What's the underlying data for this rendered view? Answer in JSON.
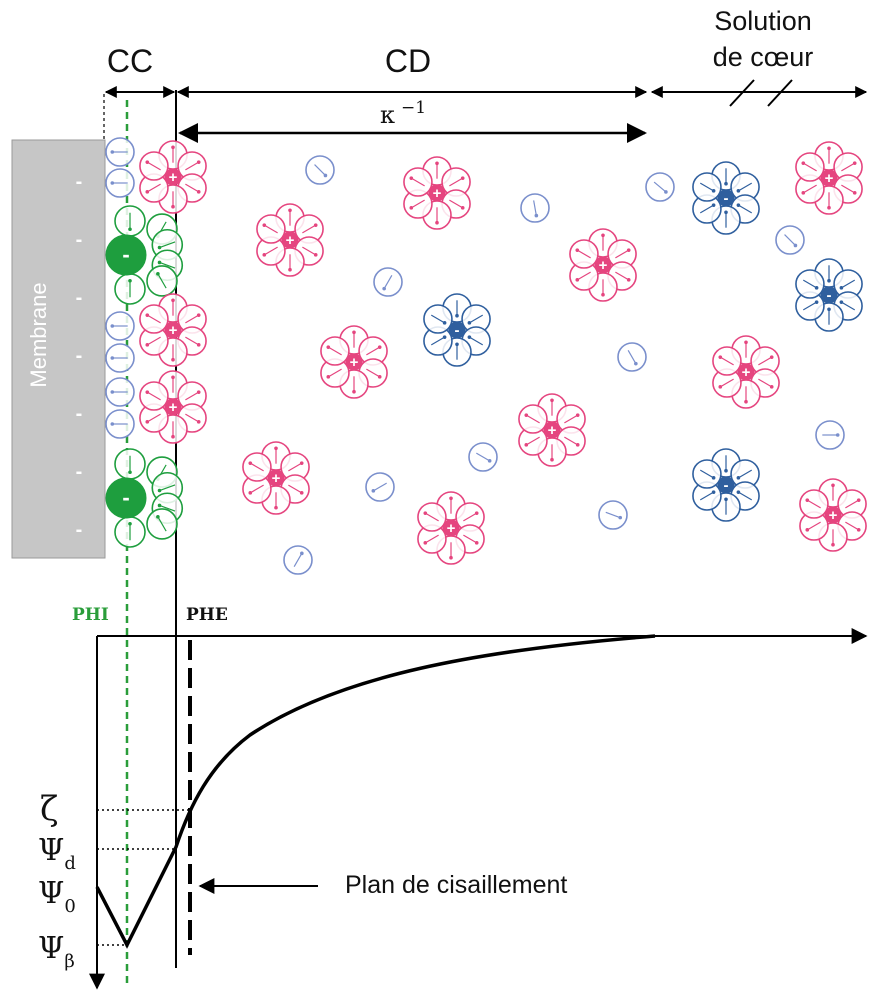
{
  "regions": {
    "cc": "CC",
    "cd": "CD",
    "bulk_line1": "Solution",
    "bulk_line2": "de cœur"
  },
  "debye_length": "κ",
  "debye_exponent": "−1",
  "membrane_label": "Membrane",
  "membrane_charge": "-",
  "planes": {
    "inner": "PHI",
    "outer": "PHE"
  },
  "shear_plane_label": "Plan de cisaillement",
  "potentials": {
    "zeta": "ζ",
    "psi": "Ψ",
    "psi_d_sub": "d",
    "psi_0_sub": "0",
    "psi_beta_sub": "β"
  },
  "ion_signs": {
    "cation": "+",
    "anion": "-"
  },
  "colors": {
    "cation": "#e5457f",
    "anion_bulk": "#2f5f9e",
    "anion_adsorbed": "#1e9e3e",
    "water": "#7a8fcc",
    "membrane": "#c6c6c6",
    "inner_plane": "#2a9d3a",
    "axis": "#000000"
  }
}
